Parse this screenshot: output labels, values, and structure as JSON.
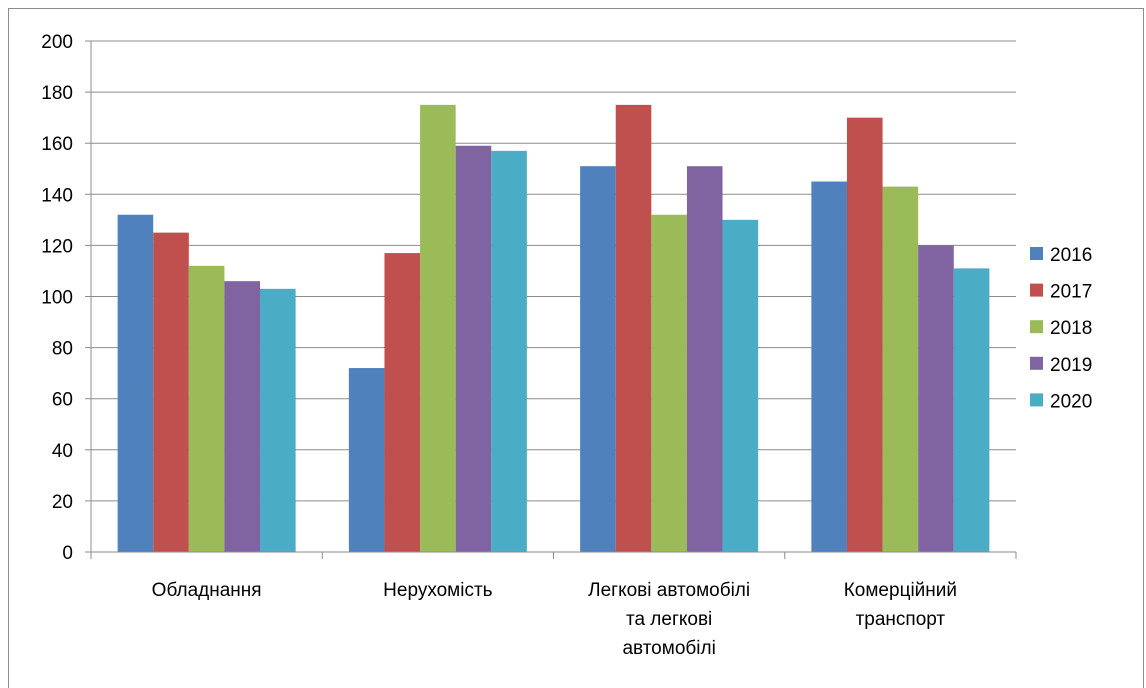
{
  "chart_data": {
    "type": "bar",
    "title": "",
    "xlabel": "",
    "ylabel": "",
    "ylim": [
      0,
      200
    ],
    "ytick_step": 20,
    "grid": true,
    "legend_position": "right",
    "categories": [
      [
        "Обладнання"
      ],
      [
        "Нерухомість"
      ],
      [
        "Легкові автомобілі",
        "та легкові",
        "автомобілі"
      ],
      [
        "Комерційний",
        "транспорт"
      ]
    ],
    "series": [
      {
        "name": "2016",
        "color": "#4F81BD",
        "values": [
          132,
          72,
          151,
          145
        ]
      },
      {
        "name": "2017",
        "color": "#C0504D",
        "values": [
          125,
          117,
          175,
          170
        ]
      },
      {
        "name": "2018",
        "color": "#9BBB59",
        "values": [
          112,
          175,
          132,
          143
        ]
      },
      {
        "name": "2019",
        "color": "#8064A2",
        "values": [
          106,
          159,
          151,
          120
        ]
      },
      {
        "name": "2020",
        "color": "#4BACC6",
        "values": [
          103,
          157,
          130,
          111
        ]
      }
    ]
  }
}
